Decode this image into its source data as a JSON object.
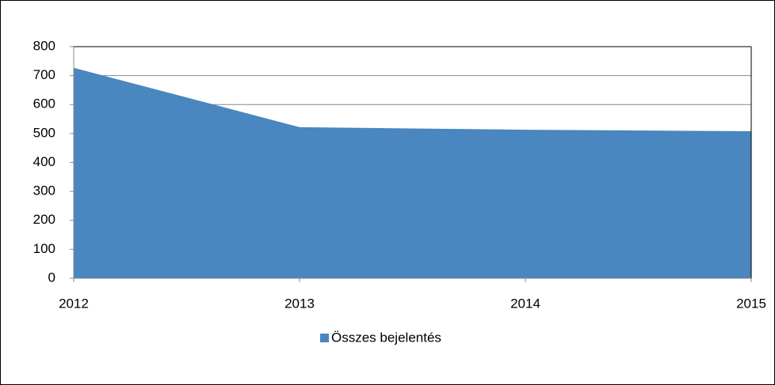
{
  "chart_data": {
    "type": "area",
    "categories": [
      "2012",
      "2013",
      "2014",
      "2015"
    ],
    "series": [
      {
        "name": "Összes bejelentés",
        "color": "#4a86c0",
        "values": [
          727,
          522,
          513,
          508
        ]
      }
    ],
    "ylim": [
      0,
      800
    ],
    "yticks": [
      0,
      100,
      200,
      300,
      400,
      500,
      600,
      700,
      800
    ],
    "grid": true,
    "legend": "bottom"
  }
}
